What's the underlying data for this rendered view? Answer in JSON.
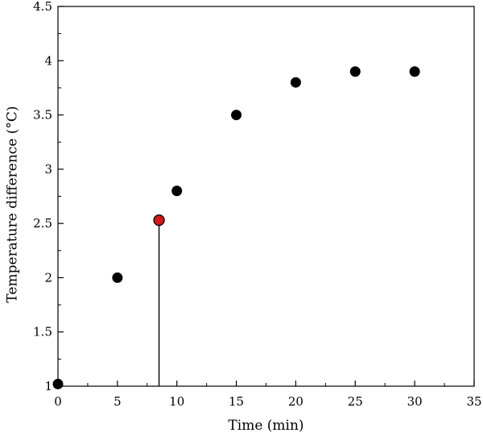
{
  "chart_data": {
    "type": "scatter",
    "xlabel": "Time (min)",
    "ylabel": "Temperature difference (°C)",
    "xlim": [
      0,
      35
    ],
    "ylim": [
      1,
      4.5
    ],
    "x_ticks": [
      0,
      5,
      10,
      15,
      20,
      25,
      30,
      35
    ],
    "y_ticks": [
      1,
      1.5,
      2,
      2.5,
      3,
      3.5,
      4,
      4.5
    ],
    "x_tick_labels": [
      "0",
      "5",
      "10",
      "15",
      "20",
      "25",
      "30",
      "35"
    ],
    "y_tick_labels": [
      "1",
      "1.5",
      "2",
      "2.5",
      "3",
      "3.5",
      "4",
      "4.5"
    ],
    "grid": false,
    "series": [
      {
        "color": "#000000",
        "x": [
          0,
          5,
          10,
          15,
          20,
          25,
          30
        ],
        "y": [
          1.02,
          2.0,
          2.8,
          3.5,
          3.8,
          3.9,
          3.9
        ]
      }
    ],
    "highlight_point": {
      "x": 8.5,
      "y": 2.53,
      "color": "#d0191b",
      "drop_line_to_x_axis": true
    }
  }
}
